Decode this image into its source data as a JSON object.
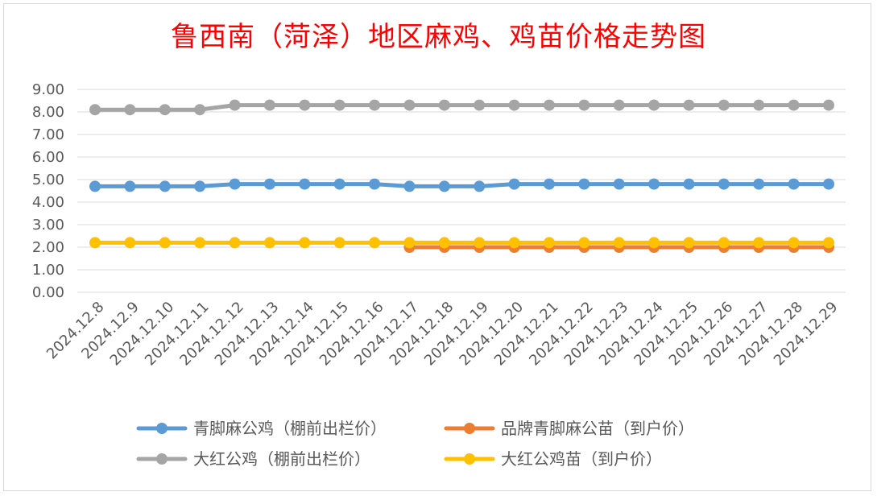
{
  "chart_data": {
    "type": "line",
    "title": "鲁西南（菏泽）地区麻鸡、鸡苗价格走势图",
    "xlabel": "",
    "ylabel": "",
    "ylim": [
      0,
      9
    ],
    "yticks": [
      "0.00",
      "1.00",
      "2.00",
      "3.00",
      "4.00",
      "5.00",
      "6.00",
      "7.00",
      "8.00",
      "9.00"
    ],
    "grid": true,
    "legend_position": "bottom",
    "categories": [
      "2024.12.8",
      "2024.12.9",
      "2024.12.10",
      "2024.12.11",
      "2024.12.12",
      "2024.12.13",
      "2024.12.14",
      "2024.12.15",
      "2024.12.16",
      "2024.12.17",
      "2024.12.18",
      "2024.12.19",
      "2024.12.20",
      "2024.12.21",
      "2024.12.22",
      "2024.12.23",
      "2024.12.24",
      "2024.12.25",
      "2024.12.26",
      "2024.12.27",
      "2024.12.28",
      "2024.12.29"
    ],
    "series": [
      {
        "name": "青脚麻公鸡（棚前出栏价）",
        "color": "#5b9bd5",
        "values": [
          4.7,
          4.7,
          4.7,
          4.7,
          4.8,
          4.8,
          4.8,
          4.8,
          4.8,
          4.7,
          4.7,
          4.7,
          4.8,
          4.8,
          4.8,
          4.8,
          4.8,
          4.8,
          4.8,
          4.8,
          4.8,
          4.8
        ]
      },
      {
        "name": "品牌青脚麻公苗（到户价）",
        "color": "#ed7d31",
        "values": [
          null,
          null,
          null,
          null,
          null,
          null,
          null,
          null,
          null,
          2.0,
          2.0,
          2.0,
          2.0,
          2.0,
          2.0,
          2.0,
          2.0,
          2.0,
          2.0,
          2.0,
          2.0,
          2.0
        ]
      },
      {
        "name": "大红公鸡（棚前出栏价）",
        "color": "#a5a5a5",
        "values": [
          8.1,
          8.1,
          8.1,
          8.1,
          8.3,
          8.3,
          8.3,
          8.3,
          8.3,
          8.3,
          8.3,
          8.3,
          8.3,
          8.3,
          8.3,
          8.3,
          8.3,
          8.3,
          8.3,
          8.3,
          8.3,
          8.3
        ]
      },
      {
        "name": "大红公鸡苗（到户价）",
        "color": "#ffc000",
        "values": [
          2.2,
          2.2,
          2.2,
          2.2,
          2.2,
          2.2,
          2.2,
          2.2,
          2.2,
          2.2,
          2.2,
          2.2,
          2.2,
          2.2,
          2.2,
          2.2,
          2.2,
          2.2,
          2.2,
          2.2,
          2.2,
          2.2
        ]
      }
    ]
  }
}
